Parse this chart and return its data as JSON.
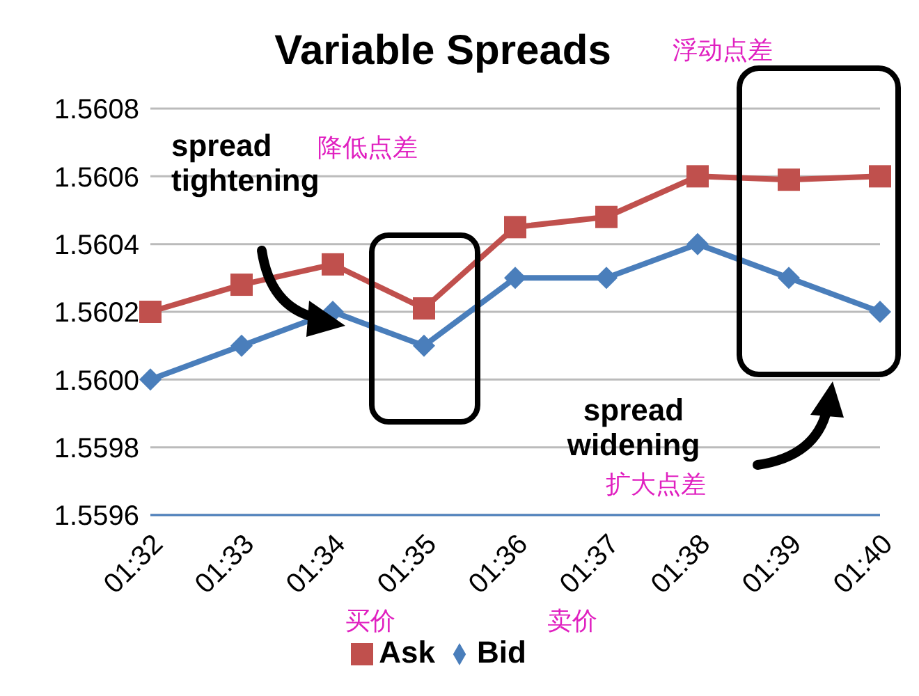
{
  "chart_data": {
    "type": "line",
    "title": "Variable Spreads",
    "categories": [
      "01:32",
      "01:33",
      "01:34",
      "01:35",
      "01:36",
      "01:37",
      "01:38",
      "01:39",
      "01:40"
    ],
    "series": [
      {
        "name": "Bid",
        "color": "#4a7ebb",
        "marker": "diamond",
        "values": [
          1.56,
          1.5601,
          1.5602,
          1.5601,
          1.5603,
          1.5603,
          1.5604,
          1.5603,
          1.5602
        ]
      },
      {
        "name": "Ask",
        "color": "#c0504d",
        "marker": "square",
        "values": [
          1.5602,
          1.56028,
          1.56034,
          1.56021,
          1.56045,
          1.56048,
          1.5606,
          1.56059,
          1.5606
        ]
      }
    ],
    "ylim": [
      1.5596,
      1.5608
    ],
    "yticks": [
      {
        "value": 1.5596,
        "label": "1.5596"
      },
      {
        "value": 1.5598,
        "label": "1.5598"
      },
      {
        "value": 1.56,
        "label": "1.5600"
      },
      {
        "value": 1.5602,
        "label": "1.5602"
      },
      {
        "value": 1.5604,
        "label": "1.5604"
      },
      {
        "value": 1.5606,
        "label": "1.5606"
      },
      {
        "value": 1.5608,
        "label": "1.5608"
      }
    ],
    "grid": "y",
    "legend": "bottom",
    "line_style": "solid",
    "annotations": [
      "浮动点差",
      "spread tightening",
      "降低点差",
      "spread widening",
      "扩大点差",
      "买价",
      "卖价"
    ]
  }
}
